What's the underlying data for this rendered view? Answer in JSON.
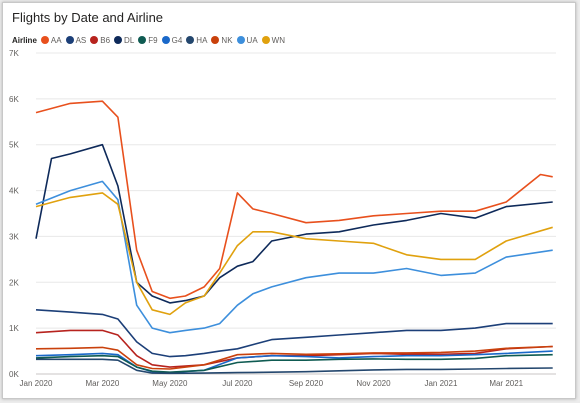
{
  "chart_data": {
    "type": "line",
    "title": "Flights by Date and Airline",
    "legend_title": "Airline",
    "legend_position": "top-left",
    "xlabel": "",
    "ylabel": "",
    "ylim": [
      0,
      7000
    ],
    "x_start": "2020-01-01",
    "x_end": "2021-04-15",
    "x_ticks": [
      {
        "date": "2020-01-01",
        "label": "Jan 2020"
      },
      {
        "date": "2020-03-01",
        "label": "Mar 2020"
      },
      {
        "date": "2020-05-01",
        "label": "May 2020"
      },
      {
        "date": "2020-07-01",
        "label": "Jul 2020"
      },
      {
        "date": "2020-09-01",
        "label": "Sep 2020"
      },
      {
        "date": "2020-11-01",
        "label": "Nov 2020"
      },
      {
        "date": "2021-01-01",
        "label": "Jan 2021"
      },
      {
        "date": "2021-03-01",
        "label": "Mar 2021"
      }
    ],
    "y_ticks": [
      {
        "value": 0,
        "label": "0K"
      },
      {
        "value": 1000,
        "label": "1K"
      },
      {
        "value": 2000,
        "label": "2K"
      },
      {
        "value": 3000,
        "label": "3K"
      },
      {
        "value": 4000,
        "label": "4K"
      },
      {
        "value": 5000,
        "label": "5K"
      },
      {
        "value": 6000,
        "label": "6K"
      },
      {
        "value": 7000,
        "label": "7K"
      }
    ],
    "grid": true,
    "series": [
      {
        "name": "AA",
        "color": "#e8501d",
        "x": [
          "2020-01-01",
          "2020-02-01",
          "2020-03-01",
          "2020-03-15",
          "2020-04-01",
          "2020-04-15",
          "2020-05-01",
          "2020-05-15",
          "2020-06-01",
          "2020-06-15",
          "2020-07-01",
          "2020-07-15",
          "2020-08-01",
          "2020-09-01",
          "2020-10-01",
          "2020-11-01",
          "2020-12-01",
          "2021-01-01",
          "2021-02-01",
          "2021-03-01",
          "2021-04-01",
          "2021-04-12"
        ],
        "y": [
          5700,
          5900,
          5950,
          5600,
          2700,
          1800,
          1650,
          1700,
          1900,
          2300,
          3950,
          3600,
          3500,
          3300,
          3350,
          3450,
          3500,
          3550,
          3550,
          3750,
          4350,
          4300
        ]
      },
      {
        "name": "AS",
        "color": "#1c3f78",
        "x": [
          "2020-01-01",
          "2020-02-01",
          "2020-03-01",
          "2020-03-15",
          "2020-04-01",
          "2020-04-15",
          "2020-05-01",
          "2020-05-15",
          "2020-06-01",
          "2020-06-15",
          "2020-07-01",
          "2020-08-01",
          "2020-09-01",
          "2020-10-01",
          "2020-11-01",
          "2020-12-01",
          "2021-01-01",
          "2021-02-01",
          "2021-03-01",
          "2021-04-12"
        ],
        "y": [
          1400,
          1350,
          1300,
          1200,
          700,
          450,
          380,
          400,
          450,
          500,
          550,
          750,
          800,
          850,
          900,
          950,
          950,
          1000,
          1100,
          1100
        ]
      },
      {
        "name": "B6",
        "color": "#b7231e",
        "x": [
          "2020-01-01",
          "2020-02-01",
          "2020-03-01",
          "2020-03-15",
          "2020-04-01",
          "2020-04-15",
          "2020-05-01",
          "2020-06-01",
          "2020-07-01",
          "2020-08-01",
          "2020-09-01",
          "2020-10-01",
          "2020-11-01",
          "2020-12-01",
          "2021-01-01",
          "2021-02-01",
          "2021-03-01",
          "2021-04-12"
        ],
        "y": [
          900,
          950,
          950,
          850,
          400,
          200,
          150,
          200,
          350,
          400,
          400,
          420,
          450,
          430,
          430,
          450,
          550,
          600
        ]
      },
      {
        "name": "DL",
        "color": "#0e2a5a",
        "x": [
          "2020-01-01",
          "2020-01-15",
          "2020-02-01",
          "2020-03-01",
          "2020-03-15",
          "2020-04-01",
          "2020-04-15",
          "2020-05-01",
          "2020-05-15",
          "2020-06-01",
          "2020-06-15",
          "2020-07-01",
          "2020-07-15",
          "2020-08-01",
          "2020-09-01",
          "2020-10-01",
          "2020-11-01",
          "2020-12-01",
          "2021-01-01",
          "2021-02-01",
          "2021-03-01",
          "2021-04-12"
        ],
        "y": [
          2950,
          4700,
          4800,
          5000,
          4100,
          2000,
          1700,
          1550,
          1600,
          1700,
          2100,
          2350,
          2450,
          2900,
          3050,
          3100,
          3250,
          3350,
          3500,
          3400,
          3650,
          3750
        ]
      },
      {
        "name": "F9",
        "color": "#0f5b52",
        "x": [
          "2020-01-01",
          "2020-02-01",
          "2020-03-01",
          "2020-03-15",
          "2020-04-01",
          "2020-04-15",
          "2020-05-01",
          "2020-06-01",
          "2020-07-01",
          "2020-08-01",
          "2020-09-01",
          "2020-10-01",
          "2020-11-01",
          "2020-12-01",
          "2021-01-01",
          "2021-02-01",
          "2021-03-01",
          "2021-04-12"
        ],
        "y": [
          350,
          380,
          400,
          380,
          150,
          60,
          40,
          80,
          250,
          300,
          300,
          320,
          330,
          320,
          320,
          340,
          400,
          420
        ]
      },
      {
        "name": "G4",
        "color": "#1a68c9",
        "x": [
          "2020-01-01",
          "2020-02-01",
          "2020-03-01",
          "2020-03-15",
          "2020-04-01",
          "2020-04-15",
          "2020-05-01",
          "2020-06-01",
          "2020-07-01",
          "2020-08-01",
          "2020-09-01",
          "2020-10-01",
          "2020-11-01",
          "2020-12-01",
          "2021-01-01",
          "2021-02-01",
          "2021-03-01",
          "2021-04-12"
        ],
        "y": [
          400,
          420,
          450,
          420,
          150,
          50,
          30,
          80,
          350,
          400,
          380,
          350,
          380,
          400,
          400,
          420,
          450,
          500
        ]
      },
      {
        "name": "HA",
        "color": "#24476e",
        "x": [
          "2020-01-01",
          "2020-02-01",
          "2020-03-01",
          "2020-03-15",
          "2020-04-01",
          "2020-04-15",
          "2020-05-01",
          "2020-06-01",
          "2020-07-01",
          "2020-08-01",
          "2020-09-01",
          "2020-10-01",
          "2020-11-01",
          "2020-12-01",
          "2021-01-01",
          "2021-02-01",
          "2021-03-01",
          "2021-04-12"
        ],
        "y": [
          320,
          320,
          320,
          300,
          80,
          20,
          15,
          20,
          30,
          40,
          50,
          70,
          90,
          100,
          100,
          110,
          120,
          130
        ]
      },
      {
        "name": "NK",
        "color": "#c9410c",
        "x": [
          "2020-01-01",
          "2020-02-01",
          "2020-03-01",
          "2020-03-15",
          "2020-04-01",
          "2020-04-15",
          "2020-05-01",
          "2020-06-01",
          "2020-07-01",
          "2020-08-01",
          "2020-09-01",
          "2020-10-01",
          "2020-11-01",
          "2020-12-01",
          "2021-01-01",
          "2021-02-01",
          "2021-03-01",
          "2021-04-12"
        ],
        "y": [
          550,
          560,
          580,
          520,
          200,
          120,
          110,
          200,
          420,
          450,
          430,
          440,
          460,
          460,
          470,
          500,
          560,
          600
        ]
      },
      {
        "name": "UA",
        "color": "#3d8fdc",
        "x": [
          "2020-01-01",
          "2020-02-01",
          "2020-03-01",
          "2020-03-15",
          "2020-04-01",
          "2020-04-15",
          "2020-05-01",
          "2020-05-15",
          "2020-06-01",
          "2020-06-15",
          "2020-07-01",
          "2020-07-15",
          "2020-08-01",
          "2020-09-01",
          "2020-10-01",
          "2020-11-01",
          "2020-12-01",
          "2021-01-01",
          "2021-02-01",
          "2021-03-01",
          "2021-04-12"
        ],
        "y": [
          3700,
          4000,
          4200,
          3800,
          1500,
          1000,
          900,
          950,
          1000,
          1100,
          1500,
          1750,
          1900,
          2100,
          2200,
          2200,
          2300,
          2150,
          2200,
          2550,
          2700
        ]
      },
      {
        "name": "WN",
        "color": "#e0a10e",
        "x": [
          "2020-01-01",
          "2020-02-01",
          "2020-03-01",
          "2020-03-15",
          "2020-04-01",
          "2020-04-15",
          "2020-05-01",
          "2020-05-15",
          "2020-06-01",
          "2020-06-15",
          "2020-07-01",
          "2020-07-15",
          "2020-08-01",
          "2020-09-01",
          "2020-10-01",
          "2020-11-01",
          "2020-12-01",
          "2021-01-01",
          "2021-02-01",
          "2021-03-01",
          "2021-04-12"
        ],
        "y": [
          3650,
          3850,
          3950,
          3700,
          2000,
          1400,
          1300,
          1550,
          1700,
          2200,
          2800,
          3100,
          3100,
          2950,
          2900,
          2850,
          2600,
          2500,
          2500,
          2900,
          3200
        ]
      }
    ]
  }
}
